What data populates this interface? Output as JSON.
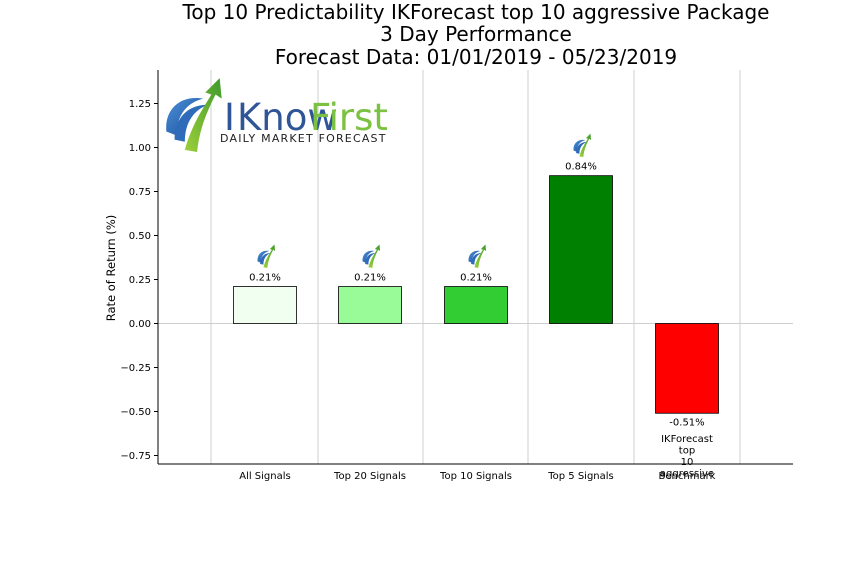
{
  "chart_data": {
    "type": "bar",
    "title_lines": [
      "Top 10 Predictability IKForecast top 10 aggressive Package",
      "3 Day Performance",
      "Forecast Data: 01/01/2019 - 05/23/2019"
    ],
    "ylabel": "Rate of Return (%)",
    "xlabel": "",
    "categories": [
      "All Signals",
      "Top 20 Signals",
      "Top 10 Signals",
      "Top 5 Signals",
      "Benchmark"
    ],
    "values": [
      0.21,
      0.21,
      0.21,
      0.84,
      -0.51
    ],
    "value_labels": [
      "0.21%",
      "0.21%",
      "0.21%",
      "0.84%",
      "-0.51%"
    ],
    "bar_colors": [
      "#f0fff0",
      "#98fb98",
      "#32cd32",
      "#008000",
      "#ff0000"
    ],
    "benchmark_note": "IKForecast top 10 aggressive",
    "benchmark_note_lines": [
      "IKForecast",
      "top",
      "10",
      "aggressive"
    ],
    "ylim": [
      -0.8,
      1.45
    ],
    "yticks": [
      -0.75,
      -0.5,
      -0.25,
      0.0,
      0.25,
      0.5,
      0.75,
      1.0,
      1.25
    ],
    "ytick_labels": [
      "−0.75",
      "−0.50",
      "−0.25",
      "0.00",
      "0.25",
      "0.50",
      "0.75",
      "1.00",
      "1.25"
    ],
    "grid": "vertical"
  },
  "logo": {
    "brand_i": "I",
    "brand_know": "Know",
    "brand_first": "First",
    "tagline": "Daily Market Forecast"
  }
}
